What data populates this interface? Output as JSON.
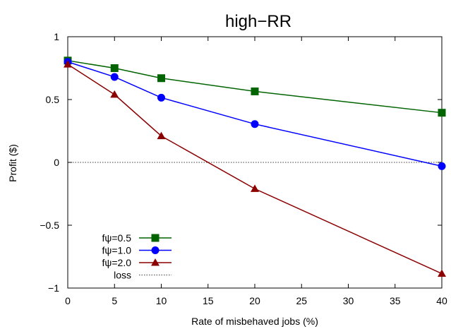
{
  "chart_data": {
    "type": "line",
    "title": "high−RR",
    "xlabel": "Rate of misbehaved jobs (%)",
    "ylabel": "Profit ($)",
    "xlim": [
      0,
      40
    ],
    "ylim": [
      -1,
      1
    ],
    "xticks": [
      0,
      5,
      10,
      15,
      20,
      25,
      30,
      35,
      40
    ],
    "yticks": [
      -1,
      -0.5,
      0,
      0.5,
      1
    ],
    "xtick_labels": [
      "0",
      "5",
      "10",
      "15",
      "20",
      "25",
      "30",
      "35",
      "40"
    ],
    "ytick_labels": [
      "−1",
      "−0.5",
      "0",
      "0.5",
      "1"
    ],
    "grid": false,
    "legend_position": "bottom-left",
    "x": [
      0,
      5,
      10,
      20,
      40
    ],
    "series": [
      {
        "name": "fψ=0.5",
        "values": [
          0.81,
          0.75,
          0.67,
          0.565,
          0.395
        ],
        "color": "#006400",
        "marker": "square"
      },
      {
        "name": "fψ=1.0",
        "values": [
          0.8,
          0.68,
          0.515,
          0.305,
          -0.03
        ],
        "color": "#0000ff",
        "marker": "circle"
      },
      {
        "name": "fψ=2.0",
        "values": [
          0.78,
          0.54,
          0.21,
          -0.21,
          -0.885
        ],
        "color": "#8b0000",
        "marker": "triangle"
      }
    ],
    "reference_lines": [
      {
        "name": "loss",
        "y": 0,
        "style": "dotted",
        "color": "#000000"
      }
    ]
  }
}
